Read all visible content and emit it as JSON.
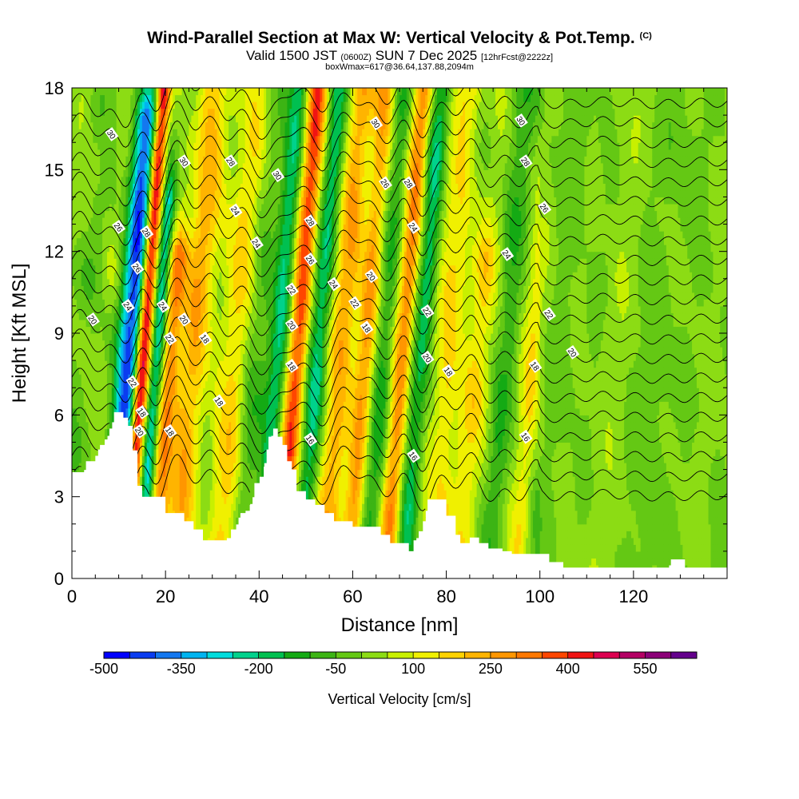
{
  "chart_data": {
    "type": "heatmap",
    "title": "Wind-Parallel Section at Max W: Vertical Velocity & Pot.Temp.",
    "title_mark": "(C)",
    "subtitle_valid": "Valid 1500 JST",
    "subtitle_utc": "(0600Z)",
    "subtitle_date": "SUN 7 Dec 2025",
    "subtitle_fcst": "[12hrFcst@2222z]",
    "subtitle_box": "boxWmax=617@36.64,137.88,2094m",
    "xlabel": "Distance [nm]",
    "ylabel": "Height [Kft MSL]",
    "xlim": [
      0,
      140
    ],
    "ylim": [
      0,
      18
    ],
    "x_ticks": [
      "0",
      "20",
      "40",
      "60",
      "80",
      "100",
      "120"
    ],
    "y_ticks": [
      "0",
      "3",
      "6",
      "9",
      "12",
      "15",
      "18"
    ],
    "colorbar": {
      "label": "Vertical Velocity [cm/s]",
      "tick_labels": [
        "-500",
        "-350",
        "-200",
        "-50",
        "100",
        "250",
        "400",
        "550"
      ],
      "levels": [
        -500,
        -450,
        -400,
        -350,
        -300,
        -250,
        -200,
        -150,
        -100,
        -50,
        0,
        50,
        100,
        150,
        200,
        250,
        300,
        350,
        400,
        450,
        500,
        550,
        600
      ],
      "colors": [
        "#0000ff",
        "#0a3cf0",
        "#1478f0",
        "#00b4f0",
        "#00dcdc",
        "#00d28c",
        "#00c050",
        "#14aa14",
        "#3cb414",
        "#64c814",
        "#8cdc14",
        "#c8f000",
        "#f0f000",
        "#ffd200",
        "#ffb400",
        "#ff9600",
        "#ff7800",
        "#ff4600",
        "#f01414",
        "#dc0050",
        "#b40064",
        "#8c0078",
        "#64008c"
      ]
    },
    "terrain_kft": [
      [
        0,
        3.9
      ],
      [
        2,
        3.9
      ],
      [
        3,
        4.3
      ],
      [
        5,
        4.5
      ],
      [
        6,
        4.9
      ],
      [
        7,
        5.1
      ],
      [
        8,
        5.5
      ],
      [
        9,
        6.1
      ],
      [
        10,
        6.1
      ],
      [
        11,
        5.9
      ],
      [
        12,
        5.6
      ],
      [
        13,
        4.7
      ],
      [
        14,
        3.4
      ],
      [
        15,
        3.0
      ],
      [
        18,
        3.0
      ],
      [
        20,
        2.4
      ],
      [
        23,
        2.4
      ],
      [
        24,
        2.1
      ],
      [
        26,
        1.8
      ],
      [
        28,
        1.4
      ],
      [
        32,
        1.4
      ],
      [
        34,
        1.8
      ],
      [
        36,
        2.4
      ],
      [
        38,
        2.7
      ],
      [
        39,
        3.5
      ],
      [
        41,
        4.1
      ],
      [
        42,
        5.2
      ],
      [
        43,
        5.5
      ],
      [
        44,
        5.2
      ],
      [
        45,
        4.9
      ],
      [
        46,
        4.3
      ],
      [
        47,
        4.0
      ],
      [
        48,
        3.2
      ],
      [
        50,
        2.9
      ],
      [
        52,
        2.7
      ],
      [
        54,
        2.4
      ],
      [
        56,
        2.1
      ],
      [
        60,
        1.9
      ],
      [
        66,
        1.6
      ],
      [
        68,
        1.3
      ],
      [
        70,
        1.3
      ],
      [
        72,
        1.0
      ],
      [
        73,
        1.4
      ],
      [
        75,
        2.1
      ],
      [
        76,
        2.9
      ],
      [
        79,
        2.9
      ],
      [
        80,
        2.3
      ],
      [
        82,
        1.6
      ],
      [
        83,
        1.3
      ],
      [
        85,
        1.5
      ],
      [
        87,
        1.3
      ],
      [
        89,
        1.1
      ],
      [
        92,
        1.0
      ],
      [
        94,
        0.9
      ],
      [
        100,
        0.9
      ],
      [
        102,
        0.6
      ],
      [
        105,
        0.4
      ],
      [
        127,
        0.4
      ],
      [
        128,
        0.7
      ],
      [
        130,
        0.7
      ],
      [
        131,
        0.4
      ],
      [
        140,
        0.4
      ]
    ],
    "w_features": [
      {
        "x": 11.5,
        "w": -400,
        "width": 2.6,
        "ztop": 17
      },
      {
        "x": 14.5,
        "w": 500,
        "width": 1.5,
        "ztop": 18
      },
      {
        "x": 17.5,
        "w": -300,
        "width": 1.5,
        "ztop": 14
      },
      {
        "x": 20.5,
        "w": 300,
        "width": 2.0,
        "ztop": 12
      },
      {
        "x": 25,
        "w": 200,
        "width": 3.0,
        "ztop": 18
      },
      {
        "x": 34,
        "w": 150,
        "width": 4.0,
        "ztop": 18
      },
      {
        "x": 38,
        "w": -100,
        "width": 2.5,
        "ztop": 18
      },
      {
        "x": 43.5,
        "w": -200,
        "width": 2.0,
        "ztop": 18
      },
      {
        "x": 47.5,
        "w": 350,
        "width": 2.0,
        "ztop": 18
      },
      {
        "x": 52,
        "w": -200,
        "width": 2.0,
        "ztop": 18
      },
      {
        "x": 57,
        "w": 200,
        "width": 3.0,
        "ztop": 18
      },
      {
        "x": 62,
        "w": 250,
        "width": 2.0,
        "ztop": 18
      },
      {
        "x": 66,
        "w": -150,
        "width": 2.0,
        "ztop": 18
      },
      {
        "x": 70,
        "w": 300,
        "width": 2.0,
        "ztop": 18
      },
      {
        "x": 74,
        "w": -200,
        "width": 2.0,
        "ztop": 18
      },
      {
        "x": 80,
        "w": 150,
        "width": 3.0,
        "ztop": 18
      },
      {
        "x": 86,
        "w": 120,
        "width": 3.0,
        "ztop": 12
      },
      {
        "x": 92,
        "w": -80,
        "width": 2.5,
        "ztop": 18
      },
      {
        "x": 98,
        "w": 130,
        "width": 2.0,
        "ztop": 12
      },
      {
        "x": 104,
        "w": -60,
        "width": 3.0,
        "ztop": 18
      },
      {
        "x": 115,
        "w": 40,
        "width": 4.0,
        "ztop": 18
      },
      {
        "x": 125,
        "w": -50,
        "width": 4.0,
        "ztop": 18
      }
    ],
    "contour_labels": [
      {
        "text": "30",
        "x": 8.5,
        "y": 16.3
      },
      {
        "text": "30",
        "x": 24,
        "y": 15.3
      },
      {
        "text": "28",
        "x": 34,
        "y": 15.3
      },
      {
        "text": "30",
        "x": 44,
        "y": 14.8
      },
      {
        "text": "30",
        "x": 65,
        "y": 16.7
      },
      {
        "text": "30",
        "x": 96,
        "y": 16.8
      },
      {
        "text": "28",
        "x": 97,
        "y": 15.3
      },
      {
        "text": "26",
        "x": 10,
        "y": 12.9
      },
      {
        "text": "28",
        "x": 16,
        "y": 12.7
      },
      {
        "text": "24",
        "x": 35,
        "y": 13.5
      },
      {
        "text": "24",
        "x": 39.5,
        "y": 12.3
      },
      {
        "text": "28",
        "x": 51,
        "y": 13.1
      },
      {
        "text": "26",
        "x": 67,
        "y": 14.5
      },
      {
        "text": "28",
        "x": 72,
        "y": 14.5
      },
      {
        "text": "24",
        "x": 73,
        "y": 12.9
      },
      {
        "text": "26",
        "x": 101,
        "y": 13.6
      },
      {
        "text": "24",
        "x": 93,
        "y": 11.9
      },
      {
        "text": "26",
        "x": 14,
        "y": 11.4
      },
      {
        "text": "26",
        "x": 51,
        "y": 11.7
      },
      {
        "text": "24",
        "x": 56,
        "y": 10.8
      },
      {
        "text": "20",
        "x": 64,
        "y": 11.1
      },
      {
        "text": "22",
        "x": 47,
        "y": 10.6
      },
      {
        "text": "24",
        "x": 12,
        "y": 10.0
      },
      {
        "text": "24",
        "x": 19.5,
        "y": 10.0
      },
      {
        "text": "22",
        "x": 76,
        "y": 9.8
      },
      {
        "text": "22",
        "x": 102,
        "y": 9.7
      },
      {
        "text": "20",
        "x": 4.5,
        "y": 9.5
      },
      {
        "text": "20",
        "x": 24,
        "y": 9.5
      },
      {
        "text": "20",
        "x": 47,
        "y": 9.3
      },
      {
        "text": "22",
        "x": 60.5,
        "y": 10.1
      },
      {
        "text": "18",
        "x": 63,
        "y": 9.2
      },
      {
        "text": "22",
        "x": 21,
        "y": 8.8
      },
      {
        "text": "18",
        "x": 28.5,
        "y": 8.8
      },
      {
        "text": "20",
        "x": 76,
        "y": 8.1
      },
      {
        "text": "20",
        "x": 107,
        "y": 8.3
      },
      {
        "text": "18",
        "x": 47,
        "y": 7.8
      },
      {
        "text": "18",
        "x": 80.5,
        "y": 7.6
      },
      {
        "text": "18",
        "x": 99,
        "y": 7.8
      },
      {
        "text": "22",
        "x": 13,
        "y": 7.2
      },
      {
        "text": "18",
        "x": 15,
        "y": 6.1
      },
      {
        "text": "18",
        "x": 31.5,
        "y": 6.5
      },
      {
        "text": "20",
        "x": 14.5,
        "y": 5.4
      },
      {
        "text": "18",
        "x": 21,
        "y": 5.4
      },
      {
        "text": "16",
        "x": 51,
        "y": 5.1
      },
      {
        "text": "16",
        "x": 97,
        "y": 5.2
      },
      {
        "text": "16",
        "x": 73,
        "y": 4.5
      }
    ]
  }
}
